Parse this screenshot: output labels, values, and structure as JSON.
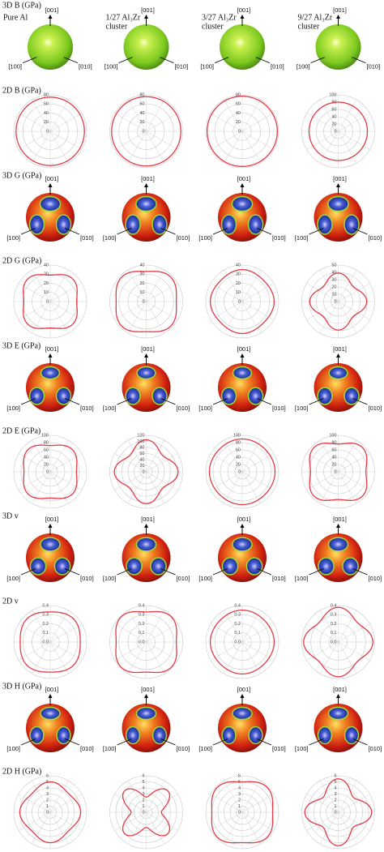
{
  "columns": [
    {
      "title": [
        "Pure Al"
      ]
    },
    {
      "title": [
        "1/27 Al₃Zr",
        "cluster"
      ]
    },
    {
      "title": [
        "3/27 Al₃Zr",
        "cluster"
      ]
    },
    {
      "title": [
        "9/27 Al₃Zr",
        "cluster"
      ]
    }
  ],
  "direction_labels": [
    "[001]",
    "[100]",
    "[010]"
  ],
  "curve_color": "#e23a46",
  "properties": [
    {
      "label_3d": "3D B (GPa)",
      "label_2d": "2D B (GPa)",
      "polar": [
        {
          "rlim": [
            0,
            80
          ],
          "rticks": [
            0,
            20,
            40,
            60,
            80
          ],
          "angles": [
            0,
            45
          ],
          "r": [
            75,
            75
          ]
        },
        {
          "rlim": [
            0,
            80
          ],
          "rticks": [
            0,
            20,
            40,
            60,
            80
          ],
          "angles": [
            0,
            45
          ],
          "r": [
            76,
            76
          ]
        },
        {
          "rlim": [
            0,
            80
          ],
          "rticks": [
            0,
            20,
            40,
            60,
            80
          ],
          "angles": [
            0,
            45
          ],
          "r": [
            77,
            77
          ]
        },
        {
          "rlim": [
            0,
            100
          ],
          "rticks": [
            0,
            20,
            40,
            60,
            80,
            100
          ],
          "angles": [
            0,
            45
          ],
          "r": [
            80,
            80
          ]
        }
      ]
    },
    {
      "label_3d": "3D G (GPa)",
      "label_2d": "2D G (GPa)",
      "polar": [
        {
          "rlim": [
            0,
            40
          ],
          "rticks": [
            0,
            10,
            20,
            30,
            40
          ],
          "angles": [
            0,
            45
          ],
          "r": [
            29,
            35
          ]
        },
        {
          "rlim": [
            0,
            40
          ],
          "rticks": [
            0,
            10,
            20,
            30,
            40
          ],
          "angles": [
            0,
            45
          ],
          "r": [
            33,
            38
          ]
        },
        {
          "rlim": [
            0,
            40
          ],
          "rticks": [
            0,
            10,
            20,
            30,
            40
          ],
          "angles": [
            0,
            45
          ],
          "r": [
            35,
            33
          ]
        },
        {
          "rlim": [
            0,
            50
          ],
          "rticks": [
            0,
            10,
            20,
            30,
            40,
            50
          ],
          "angles": [
            0,
            45
          ],
          "r": [
            39,
            29
          ]
        }
      ]
    },
    {
      "label_3d": "3D E (GPa)",
      "label_2d": "2D E (GPa)",
      "polar": [
        {
          "rlim": [
            0,
            100
          ],
          "rticks": [
            0,
            20,
            40,
            60,
            80,
            100
          ],
          "angles": [
            0,
            45
          ],
          "r": [
            72,
            86
          ]
        },
        {
          "rlim": [
            0,
            120
          ],
          "rticks": [
            0,
            20,
            40,
            60,
            80,
            100,
            120
          ],
          "angles": [
            0,
            45
          ],
          "r": [
            105,
            76
          ]
        },
        {
          "rlim": [
            0,
            100
          ],
          "rticks": [
            0,
            20,
            40,
            60,
            80,
            100
          ],
          "angles": [
            0,
            45
          ],
          "r": [
            90,
            88
          ]
        },
        {
          "rlim": [
            0,
            100
          ],
          "rticks": [
            0,
            20,
            40,
            60,
            80,
            100
          ],
          "angles": [
            0,
            45
          ],
          "r": [
            76,
            94
          ]
        }
      ]
    },
    {
      "label_3d": "3D v",
      "label_2d": "2D v",
      "polar": [
        {
          "rlim": [
            0,
            0.4
          ],
          "rticks": [
            {
              "value": 0,
              "label": "0.0"
            },
            0.1,
            0.2,
            0.3,
            0.4
          ],
          "angles": [
            0,
            45
          ],
          "r": [
            0.33,
            0.36
          ]
        },
        {
          "rlim": [
            0,
            0.4
          ],
          "rticks": [
            {
              "value": 0,
              "label": "0.0"
            },
            0.1,
            0.2,
            0.3,
            0.4
          ],
          "angles": [
            0,
            45
          ],
          "r": [
            0.33,
            0.39
          ]
        },
        {
          "rlim": [
            0,
            0.4
          ],
          "rticks": [
            {
              "value": 0,
              "label": "0.0"
            },
            0.1,
            0.2,
            0.3,
            0.4
          ],
          "angles": [
            0,
            45
          ],
          "r": [
            0.35,
            0.34
          ]
        },
        {
          "rlim": [
            0,
            0.4
          ],
          "rticks": [
            {
              "value": 0,
              "label": "0.0"
            },
            0.1,
            0.2,
            0.3,
            0.4
          ],
          "angles": [
            0,
            45
          ],
          "r": [
            0.38,
            0.3
          ]
        }
      ]
    },
    {
      "label_3d": "3D H (GPa)",
      "label_2d": "2D H (GPa)",
      "polar": [
        {
          "rlim": [
            0,
            6
          ],
          "rticks": [
            0,
            1,
            2,
            3,
            4,
            5,
            6
          ],
          "angles": [
            0,
            45
          ],
          "r": [
            5,
            4.3
          ]
        },
        {
          "rlim": [
            0,
            6
          ],
          "rticks": [
            0,
            1,
            2,
            3,
            4,
            5,
            6
          ],
          "angles": [
            0,
            45
          ],
          "r": [
            2.5,
            5
          ]
        },
        {
          "rlim": [
            0,
            6
          ],
          "rticks": [
            0,
            1,
            2,
            3,
            4,
            5,
            6
          ],
          "angles": [
            0,
            45
          ],
          "r": [
            5,
            5.8
          ]
        },
        {
          "rlim": [
            0,
            6
          ],
          "rticks": [
            0,
            1,
            2,
            3,
            4,
            5,
            6
          ],
          "angles": [
            0,
            45
          ],
          "r": [
            5.5,
            3.5
          ]
        }
      ]
    }
  ]
}
